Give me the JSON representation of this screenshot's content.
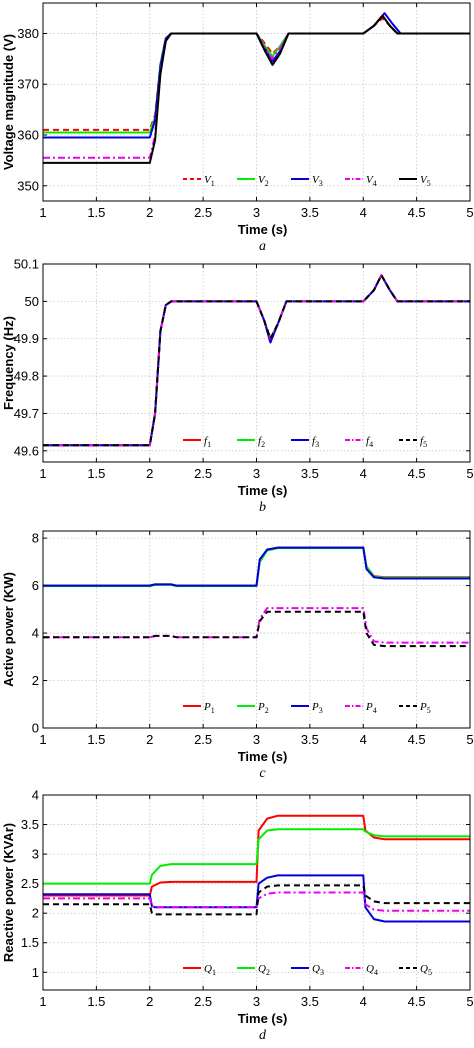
{
  "chart_data": [
    {
      "type": "line",
      "panel_label": "a",
      "xlabel": "Time (s)",
      "ylabel": "Voltage magnitude (V)",
      "xlim": [
        1,
        5
      ],
      "ylim": [
        347,
        386
      ],
      "xticks": [
        "1",
        "1.5",
        "2",
        "2.5",
        "3",
        "3.5",
        "4",
        "4.5",
        "5"
      ],
      "yticks": [
        "350",
        "360",
        "370",
        "380"
      ],
      "ytick_values": [
        350,
        360,
        370,
        380
      ],
      "grid": true,
      "legend_position": "lower-right",
      "series": [
        {
          "name": "V1",
          "sub": "1",
          "letter": "V",
          "color": "#ff0000",
          "dash": "dashed",
          "x": [
            1,
            2.0,
            2.05,
            2.1,
            2.15,
            2.2,
            3.0,
            3.08,
            3.15,
            3.22,
            3.3,
            4.0,
            4.1,
            4.18,
            4.25,
            4.32,
            5
          ],
          "y": [
            361,
            361,
            364,
            374,
            379,
            380,
            380,
            378,
            376,
            377.5,
            380,
            380,
            381.5,
            383,
            381.5,
            380,
            380
          ]
        },
        {
          "name": "V2",
          "sub": "2",
          "letter": "V",
          "color": "#00ee00",
          "dash": "solid",
          "x": [
            1,
            2.0,
            2.05,
            2.1,
            2.15,
            2.2,
            3.0,
            3.08,
            3.15,
            3.22,
            3.3,
            4.0,
            4.1,
            4.18,
            4.25,
            4.32,
            5
          ],
          "y": [
            360.5,
            360.5,
            363.5,
            374,
            379,
            380,
            380,
            377.5,
            375.5,
            377.5,
            380,
            380,
            381.5,
            383.5,
            381.5,
            380,
            380
          ]
        },
        {
          "name": "V3",
          "sub": "3",
          "letter": "V",
          "color": "#0000dd",
          "dash": "solid",
          "x": [
            1,
            2.0,
            2.05,
            2.1,
            2.15,
            2.2,
            3.0,
            3.08,
            3.15,
            3.22,
            3.3,
            4.0,
            4.1,
            4.2,
            4.27,
            4.35,
            5
          ],
          "y": [
            359.5,
            359.5,
            363,
            373.5,
            379,
            380,
            380,
            377,
            374.5,
            376.5,
            380,
            380,
            381.5,
            384,
            382,
            380,
            380
          ]
        },
        {
          "name": "V4",
          "sub": "4",
          "letter": "V",
          "color": "#ee00ee",
          "dash": "dashdot",
          "x": [
            1,
            2.0,
            2.05,
            2.1,
            2.15,
            2.2,
            3.0,
            3.08,
            3.15,
            3.22,
            3.3,
            4.0,
            4.1,
            4.18,
            4.25,
            4.32,
            5
          ],
          "y": [
            355.5,
            355.5,
            360,
            372.5,
            378.5,
            380,
            380,
            377,
            375,
            377,
            380,
            380,
            381.5,
            383.5,
            381.5,
            380,
            380
          ]
        },
        {
          "name": "V5",
          "sub": "5",
          "letter": "V",
          "color": "#000000",
          "dash": "solid",
          "x": [
            1,
            2.0,
            2.05,
            2.1,
            2.15,
            2.2,
            3.0,
            3.08,
            3.15,
            3.22,
            3.3,
            4.0,
            4.1,
            4.18,
            4.25,
            4.32,
            5
          ],
          "y": [
            354.5,
            354.5,
            359,
            372,
            378.5,
            380,
            380,
            376.5,
            373.8,
            376,
            380,
            380,
            381.5,
            383.5,
            381.5,
            380,
            380
          ]
        }
      ]
    },
    {
      "type": "line",
      "panel_label": "b",
      "xlabel": "Time (s)",
      "ylabel": "Frequency (Hz)",
      "xlim": [
        1,
        5
      ],
      "ylim": [
        49.57,
        50.1
      ],
      "xticks": [
        "1",
        "1.5",
        "2",
        "2.5",
        "3",
        "3.5",
        "4",
        "4.5",
        "5"
      ],
      "yticks": [
        "49.6",
        "49.7",
        "49.8",
        "49.9",
        "50",
        "50.1"
      ],
      "ytick_values": [
        49.6,
        49.7,
        49.8,
        49.9,
        50.0,
        50.1
      ],
      "grid": true,
      "legend_position": "lower-right",
      "series": [
        {
          "name": "f1",
          "sub": "1",
          "letter": "f",
          "color": "#ff0000",
          "dash": "solid",
          "x": [
            1,
            2.0,
            2.05,
            2.1,
            2.15,
            2.2,
            3.0,
            3.07,
            3.13,
            3.2,
            3.28,
            4.0,
            4.1,
            4.17,
            4.25,
            4.32,
            5
          ],
          "y": [
            49.615,
            49.615,
            49.7,
            49.92,
            49.99,
            50.0,
            50.0,
            49.95,
            49.9,
            49.94,
            50.0,
            50.0,
            50.03,
            50.07,
            50.03,
            50.0,
            50.0
          ]
        },
        {
          "name": "f2",
          "sub": "2",
          "letter": "f",
          "color": "#00ee00",
          "dash": "solid",
          "x": [
            1,
            2.0,
            2.05,
            2.1,
            2.15,
            2.2,
            3.0,
            3.07,
            3.13,
            3.2,
            3.28,
            4.0,
            4.1,
            4.17,
            4.25,
            4.32,
            5
          ],
          "y": [
            49.615,
            49.615,
            49.7,
            49.92,
            49.99,
            50.0,
            50.0,
            49.95,
            49.9,
            49.94,
            50.0,
            50.0,
            50.03,
            50.07,
            50.03,
            50.0,
            50.0
          ]
        },
        {
          "name": "f3",
          "sub": "3",
          "letter": "f",
          "color": "#0000dd",
          "dash": "solid",
          "x": [
            1,
            2.0,
            2.05,
            2.1,
            2.15,
            2.2,
            3.0,
            3.07,
            3.13,
            3.2,
            3.28,
            4.0,
            4.1,
            4.17,
            4.25,
            4.32,
            5
          ],
          "y": [
            49.615,
            49.615,
            49.7,
            49.92,
            49.99,
            50.0,
            50.0,
            49.95,
            49.89,
            49.94,
            50.0,
            50.0,
            50.03,
            50.07,
            50.03,
            50.0,
            50.0
          ]
        },
        {
          "name": "f4",
          "sub": "4",
          "letter": "f",
          "color": "#ee00ee",
          "dash": "dashdot",
          "x": [
            1,
            2.0,
            2.05,
            2.1,
            2.15,
            2.2,
            3.0,
            3.07,
            3.13,
            3.2,
            3.28,
            4.0,
            4.1,
            4.17,
            4.25,
            4.32,
            5
          ],
          "y": [
            49.615,
            49.615,
            49.7,
            49.92,
            49.99,
            50.0,
            50.0,
            49.95,
            49.9,
            49.94,
            50.0,
            50.0,
            50.03,
            50.07,
            50.03,
            50.0,
            50.0
          ]
        },
        {
          "name": "f5",
          "sub": "5",
          "letter": "f",
          "color": "#000000",
          "dash": "dashed",
          "x": [
            1,
            2.0,
            2.05,
            2.1,
            2.15,
            2.2,
            3.0,
            3.07,
            3.13,
            3.2,
            3.28,
            4.0,
            4.1,
            4.17,
            4.25,
            4.32,
            5
          ],
          "y": [
            49.615,
            49.615,
            49.7,
            49.92,
            49.99,
            50.0,
            50.0,
            49.95,
            49.9,
            49.94,
            50.0,
            50.0,
            50.03,
            50.07,
            50.03,
            50.0,
            50.0
          ]
        }
      ]
    },
    {
      "type": "line",
      "panel_label": "c",
      "xlabel": "Time (s)",
      "ylabel": "Active power (KW)",
      "xlim": [
        1,
        5
      ],
      "ylim": [
        0,
        8.3
      ],
      "xticks": [
        "1",
        "1.5",
        "2",
        "2.5",
        "3",
        "3.5",
        "4",
        "4.5",
        "5"
      ],
      "yticks": [
        "0",
        "2",
        "4",
        "6",
        "8"
      ],
      "ytick_values": [
        0,
        2,
        4,
        6,
        8
      ],
      "grid": true,
      "legend_position": "lower-right",
      "series": [
        {
          "name": "P1",
          "sub": "1",
          "letter": "P",
          "color": "#ff0000",
          "dash": "solid",
          "x": [
            1,
            2.0,
            2.05,
            2.2,
            2.25,
            3.0,
            3.03,
            3.1,
            3.2,
            4.0,
            4.03,
            4.1,
            4.2,
            5
          ],
          "y": [
            6.0,
            6.0,
            6.05,
            6.05,
            6.0,
            6.0,
            7.0,
            7.5,
            7.6,
            7.6,
            6.8,
            6.4,
            6.35,
            6.35
          ]
        },
        {
          "name": "P2",
          "sub": "2",
          "letter": "P",
          "color": "#00ee00",
          "dash": "solid",
          "x": [
            1,
            2.0,
            2.05,
            2.2,
            2.25,
            3.0,
            3.03,
            3.1,
            3.2,
            4.0,
            4.03,
            4.1,
            4.2,
            5
          ],
          "y": [
            5.98,
            5.98,
            6.03,
            6.03,
            5.98,
            5.98,
            7.0,
            7.48,
            7.58,
            7.58,
            6.8,
            6.38,
            6.33,
            6.33
          ]
        },
        {
          "name": "P3",
          "sub": "3",
          "letter": "P",
          "color": "#0000dd",
          "dash": "solid",
          "x": [
            1,
            2.0,
            2.05,
            2.2,
            2.25,
            3.0,
            3.03,
            3.1,
            3.2,
            4.0,
            4.03,
            4.1,
            4.2,
            5
          ],
          "y": [
            6.0,
            6.0,
            6.05,
            6.05,
            6.0,
            6.0,
            7.1,
            7.52,
            7.6,
            7.6,
            6.7,
            6.35,
            6.3,
            6.3
          ]
        },
        {
          "name": "P4",
          "sub": "4",
          "letter": "P",
          "color": "#ee00ee",
          "dash": "dashdot",
          "x": [
            1,
            2.0,
            2.05,
            2.2,
            2.25,
            3.0,
            3.03,
            3.1,
            4.0,
            4.03,
            4.1,
            4.2,
            5
          ],
          "y": [
            3.82,
            3.82,
            3.88,
            3.88,
            3.82,
            3.82,
            4.6,
            5.05,
            5.05,
            4.2,
            3.65,
            3.6,
            3.6
          ]
        },
        {
          "name": "P5",
          "sub": "5",
          "letter": "P",
          "color": "#000000",
          "dash": "dashed",
          "x": [
            1,
            2.0,
            2.05,
            2.2,
            2.25,
            3.0,
            3.03,
            3.1,
            4.0,
            4.03,
            4.1,
            4.2,
            5
          ],
          "y": [
            3.82,
            3.82,
            3.88,
            3.88,
            3.82,
            3.82,
            4.5,
            4.9,
            4.9,
            4.0,
            3.5,
            3.45,
            3.45
          ]
        }
      ]
    },
    {
      "type": "line",
      "panel_label": "d",
      "xlabel": "Time (s)",
      "ylabel": "Reactive power (KVAr)",
      "xlim": [
        1,
        5
      ],
      "ylim": [
        0.7,
        4.0
      ],
      "xticks": [
        "1",
        "1.5",
        "2",
        "2.5",
        "3",
        "3.5",
        "4",
        "4.5",
        "5"
      ],
      "yticks": [
        "1",
        "1.5",
        "2",
        "2.5",
        "3",
        "3.5",
        "4"
      ],
      "ytick_values": [
        1,
        1.5,
        2,
        2.5,
        3,
        3.5,
        4
      ],
      "grid": true,
      "legend_position": "lower-right",
      "series": [
        {
          "name": "Q1",
          "sub": "1",
          "letter": "Q",
          "color": "#ff0000",
          "dash": "solid",
          "x": [
            1,
            2.0,
            2.02,
            2.1,
            2.2,
            3.0,
            3.02,
            3.1,
            3.2,
            4.0,
            4.02,
            4.1,
            4.2,
            5
          ],
          "y": [
            2.3,
            2.3,
            2.45,
            2.52,
            2.53,
            2.53,
            3.4,
            3.6,
            3.65,
            3.65,
            3.4,
            3.28,
            3.25,
            3.25
          ]
        },
        {
          "name": "Q2",
          "sub": "2",
          "letter": "Q",
          "color": "#00ee00",
          "dash": "solid",
          "x": [
            1,
            2.0,
            2.02,
            2.1,
            2.2,
            3.0,
            3.02,
            3.1,
            3.2,
            4.0,
            4.02,
            4.1,
            4.2,
            5
          ],
          "y": [
            2.5,
            2.5,
            2.65,
            2.8,
            2.83,
            2.83,
            3.25,
            3.4,
            3.42,
            3.42,
            3.38,
            3.32,
            3.3,
            3.3
          ]
        },
        {
          "name": "Q3",
          "sub": "3",
          "letter": "Q",
          "color": "#0000dd",
          "dash": "solid",
          "x": [
            1,
            2.0,
            2.02,
            2.05,
            3.0,
            3.02,
            3.1,
            3.2,
            4.0,
            4.02,
            4.1,
            4.2,
            5
          ],
          "y": [
            2.32,
            2.32,
            2.12,
            2.1,
            2.1,
            2.5,
            2.6,
            2.64,
            2.64,
            2.1,
            1.9,
            1.86,
            1.86
          ]
        },
        {
          "name": "Q4",
          "sub": "4",
          "letter": "Q",
          "color": "#ee00ee",
          "dash": "dashdot",
          "x": [
            1,
            2.0,
            2.02,
            2.05,
            3.0,
            3.02,
            3.1,
            3.2,
            4.0,
            4.02,
            4.1,
            4.2,
            5
          ],
          "y": [
            2.25,
            2.25,
            2.12,
            2.1,
            2.1,
            2.25,
            2.33,
            2.35,
            2.35,
            2.15,
            2.06,
            2.04,
            2.04
          ]
        },
        {
          "name": "Q5",
          "sub": "5",
          "letter": "Q",
          "color": "#000000",
          "dash": "dashed",
          "x": [
            1,
            2.0,
            2.02,
            2.05,
            3.0,
            3.02,
            3.1,
            3.2,
            4.0,
            4.02,
            4.1,
            4.2,
            5
          ],
          "y": [
            2.15,
            2.15,
            2.0,
            1.98,
            1.98,
            2.35,
            2.45,
            2.47,
            2.47,
            2.3,
            2.2,
            2.17,
            2.17
          ]
        }
      ]
    }
  ]
}
